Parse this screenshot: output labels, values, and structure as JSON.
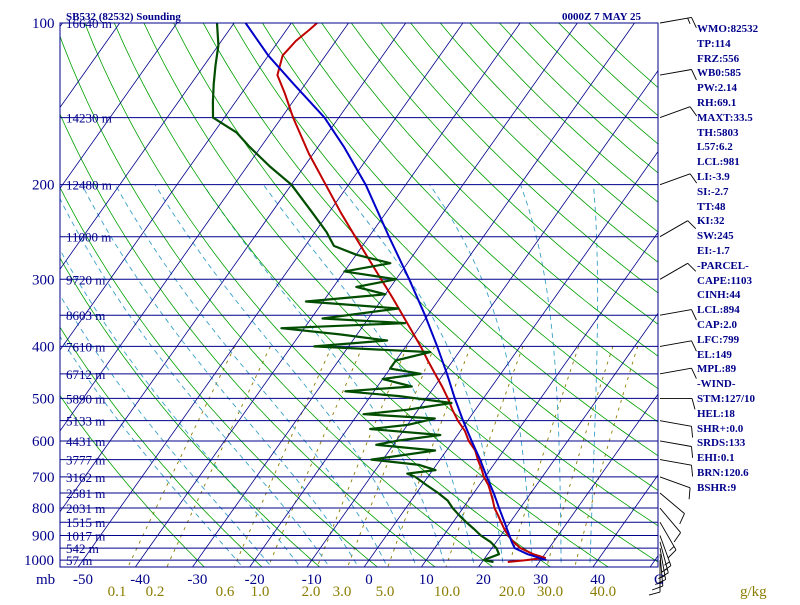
{
  "header": {
    "title": "SB532 (82532) Sounding",
    "time": "0000Z  7 MAY 25"
  },
  "colors": {
    "frame": "#00008b",
    "temperature": "#c00000",
    "dewpoint": "#004d00",
    "parcel": "#0000c8",
    "dry_adiabat": "#00a000",
    "moist_adiabat": "#39a0c8",
    "mixing_ratio": "#8b7d00"
  },
  "chart_data": {
    "type": "skew-t log-p sounding",
    "title": "SB532 (82532) Sounding",
    "valid_time": "0000Z  7 MAY 25",
    "yaxis": {
      "label": "mb",
      "scale": "log",
      "ticks": [
        100,
        200,
        300,
        400,
        500,
        600,
        700,
        800,
        900,
        1000
      ]
    },
    "xaxis": {
      "label": "C",
      "ticks": [
        -50,
        -40,
        -30,
        -20,
        -10,
        0,
        10,
        20,
        30,
        40
      ]
    },
    "mixing_ratio_axis": {
      "label": "g/kg",
      "ticks": [
        "0.1",
        "0.2",
        "0.6",
        "1.0",
        "2.0",
        "3.0",
        "5.0",
        "10.0",
        "20.0",
        "30.0",
        "40.0"
      ]
    },
    "height_labels": [
      {
        "p": 100,
        "h": "16640 m"
      },
      {
        "p": 150,
        "h": "14230 m"
      },
      {
        "p": 200,
        "h": "12480 m"
      },
      {
        "p": 250,
        "h": "11000 m"
      },
      {
        "p": 300,
        "h": "9720 m"
      },
      {
        "p": 350,
        "h": "8603 m"
      },
      {
        "p": 400,
        "h": "7610 m"
      },
      {
        "p": 450,
        "h": "6712 m"
      },
      {
        "p": 500,
        "h": "5890 m"
      },
      {
        "p": 550,
        "h": "5133 m"
      },
      {
        "p": 600,
        "h": "4431 m"
      },
      {
        "p": 650,
        "h": "3777 m"
      },
      {
        "p": 700,
        "h": "3162 m"
      },
      {
        "p": 750,
        "h": "2581 m"
      },
      {
        "p": 800,
        "h": "2031 m"
      },
      {
        "p": 850,
        "h": "1515 m"
      },
      {
        "p": 900,
        "h": "1017 m"
      },
      {
        "p": 950,
        "h": "542 m"
      },
      {
        "p": 1000,
        "h": "57 m"
      }
    ],
    "series": [
      {
        "name": "Temperature",
        "color": "#c00000",
        "points": [
          [
            1008,
            24.5
          ],
          [
            1000,
            27.5
          ],
          [
            990,
            30.5
          ],
          [
            975,
            28.0
          ],
          [
            950,
            25.0
          ],
          [
            925,
            23.0
          ],
          [
            900,
            21.3
          ],
          [
            875,
            19.8
          ],
          [
            850,
            18.4
          ],
          [
            825,
            17.0
          ],
          [
            800,
            15.5
          ],
          [
            775,
            14.3
          ],
          [
            750,
            13.0
          ],
          [
            725,
            11.6
          ],
          [
            700,
            9.8
          ],
          [
            675,
            8.3
          ],
          [
            650,
            6.6
          ],
          [
            625,
            5.0
          ],
          [
            600,
            2.7
          ],
          [
            575,
            0.8
          ],
          [
            550,
            -1.7
          ],
          [
            525,
            -4.0
          ],
          [
            500,
            -6.2
          ],
          [
            475,
            -8.7
          ],
          [
            450,
            -11.5
          ],
          [
            425,
            -14.4
          ],
          [
            400,
            -17.4
          ],
          [
            375,
            -20.8
          ],
          [
            350,
            -24.4
          ],
          [
            325,
            -28.3
          ],
          [
            300,
            -32.6
          ],
          [
            275,
            -37.3
          ],
          [
            250,
            -42.4
          ],
          [
            225,
            -48.0
          ],
          [
            200,
            -54.0
          ],
          [
            175,
            -60.8
          ],
          [
            150,
            -68.0
          ],
          [
            135,
            -72.5
          ],
          [
            125,
            -76.0
          ],
          [
            115,
            -77.5
          ],
          [
            108,
            -77.0
          ],
          [
            103,
            -76.0
          ],
          [
            100,
            -75.5
          ]
        ]
      },
      {
        "name": "Dewpoint",
        "color": "#004d00",
        "points": [
          [
            1008,
            22.0
          ],
          [
            1000,
            20.0
          ],
          [
            975,
            22.0
          ],
          [
            950,
            20.8
          ],
          [
            925,
            19.0
          ],
          [
            900,
            16.5
          ],
          [
            875,
            14.5
          ],
          [
            850,
            12.3
          ],
          [
            825,
            10.2
          ],
          [
            800,
            8.2
          ],
          [
            775,
            6.4
          ],
          [
            750,
            3.8
          ],
          [
            725,
            0.8
          ],
          [
            700,
            -2.2
          ],
          [
            690,
            -4.0
          ],
          [
            680,
            0.5
          ],
          [
            665,
            -3.0
          ],
          [
            650,
            -12.0
          ],
          [
            640,
            -8.0
          ],
          [
            625,
            -2.0
          ],
          [
            610,
            -13.0
          ],
          [
            600,
            -10.0
          ],
          [
            585,
            -3.0
          ],
          [
            570,
            -16.0
          ],
          [
            560,
            -10.0
          ],
          [
            545,
            -6.0
          ],
          [
            535,
            -19.0
          ],
          [
            525,
            -12.0
          ],
          [
            510,
            -5.0
          ],
          [
            495,
            -15.0
          ],
          [
            485,
            -25.0
          ],
          [
            475,
            -14.0
          ],
          [
            460,
            -20.0
          ],
          [
            450,
            -14.0
          ],
          [
            440,
            -20.0
          ],
          [
            425,
            -20.0
          ],
          [
            410,
            -15.0
          ],
          [
            400,
            -36.0
          ],
          [
            390,
            -24.0
          ],
          [
            380,
            -33.0
          ],
          [
            370,
            -44.0
          ],
          [
            362,
            -23.0
          ],
          [
            355,
            -38.0
          ],
          [
            340,
            -26.0
          ],
          [
            330,
            -43.0
          ],
          [
            320,
            -30.0
          ],
          [
            310,
            -36.0
          ],
          [
            300,
            -30.0
          ],
          [
            290,
            -40.0
          ],
          [
            280,
            -33.0
          ],
          [
            270,
            -40.0
          ],
          [
            260,
            -45.0
          ],
          [
            245,
            -48.0
          ],
          [
            225,
            -53.0
          ],
          [
            200,
            -60.0
          ],
          [
            185,
            -66.0
          ],
          [
            170,
            -72.0
          ],
          [
            160,
            -76.0
          ],
          [
            150,
            -82.0
          ],
          [
            140,
            -84.0
          ],
          [
            130,
            -86.0
          ],
          [
            120,
            -88.0
          ],
          [
            110,
            -90.0
          ],
          [
            100,
            -93.0
          ]
        ]
      },
      {
        "name": "Parcel",
        "color": "#0000c8",
        "points": [
          [
            1000,
            31.0
          ],
          [
            975,
            27.0
          ],
          [
            950,
            24.0
          ],
          [
            925,
            22.7
          ],
          [
            900,
            21.5
          ],
          [
            850,
            19.0
          ],
          [
            800,
            16.3
          ],
          [
            750,
            13.5
          ],
          [
            700,
            10.3
          ],
          [
            650,
            7.0
          ],
          [
            600,
            3.2
          ],
          [
            550,
            -0.8
          ],
          [
            500,
            -5.0
          ],
          [
            450,
            -9.4
          ],
          [
            400,
            -14.5
          ],
          [
            350,
            -20.5
          ],
          [
            300,
            -27.7
          ],
          [
            250,
            -36.5
          ],
          [
            200,
            -47.0
          ],
          [
            170,
            -55.5
          ],
          [
            150,
            -62.5
          ],
          [
            130,
            -72.0
          ],
          [
            115,
            -80.0
          ],
          [
            100,
            -88.0
          ]
        ]
      }
    ],
    "wind_barbs": [
      {
        "p": 1000,
        "dir": 180,
        "spd": 10
      },
      {
        "p": 975,
        "dir": 175,
        "spd": 15
      },
      {
        "p": 950,
        "dir": 170,
        "spd": 15
      },
      {
        "p": 925,
        "dir": 165,
        "spd": 15
      },
      {
        "p": 900,
        "dir": 160,
        "spd": 15
      },
      {
        "p": 850,
        "dir": 150,
        "spd": 15
      },
      {
        "p": 800,
        "dir": 140,
        "spd": 10
      },
      {
        "p": 750,
        "dir": 130,
        "spd": 10
      },
      {
        "p": 700,
        "dir": 110,
        "spd": 10
      },
      {
        "p": 650,
        "dir": 100,
        "spd": 10
      },
      {
        "p": 600,
        "dir": 100,
        "spd": 10
      },
      {
        "p": 550,
        "dir": 100,
        "spd": 10
      },
      {
        "p": 500,
        "dir": 90,
        "spd": 10
      },
      {
        "p": 450,
        "dir": 80,
        "spd": 10
      },
      {
        "p": 400,
        "dir": 80,
        "spd": 10
      },
      {
        "p": 350,
        "dir": 80,
        "spd": 10
      },
      {
        "p": 300,
        "dir": 60,
        "spd": 10
      },
      {
        "p": 250,
        "dir": 60,
        "spd": 10
      },
      {
        "p": 200,
        "dir": 70,
        "spd": 10
      },
      {
        "p": 150,
        "dir": 70,
        "spd": 10
      },
      {
        "p": 125,
        "dir": 80,
        "spd": 10
      },
      {
        "p": 100,
        "dir": 80,
        "spd": 15
      }
    ]
  },
  "indices": [
    "WMO:82532",
    "TP:114",
    "FRZ:556",
    "WB0:585",
    "PW:2.14",
    "RH:69.1",
    "MAXT:33.5",
    "TH:5803",
    "L57:6.2",
    "LCL:981",
    "LI:-3.9",
    "SI:-2.7",
    "TT:48",
    "KI:32",
    "SW:245",
    "EI:-1.7",
    "-PARCEL-",
    "CAPE:1103",
    "CINH:44",
    "LCL:894",
    "CAP:2.0",
    "LFC:799",
    "EL:149",
    "MPL:89",
    "-WIND-",
    "STM:127/10",
    "HEL:18",
    "SHR+:0.0",
    "SRDS:133",
    "EHI:0.1",
    "BRN:120.6",
    "BSHR:9"
  ]
}
